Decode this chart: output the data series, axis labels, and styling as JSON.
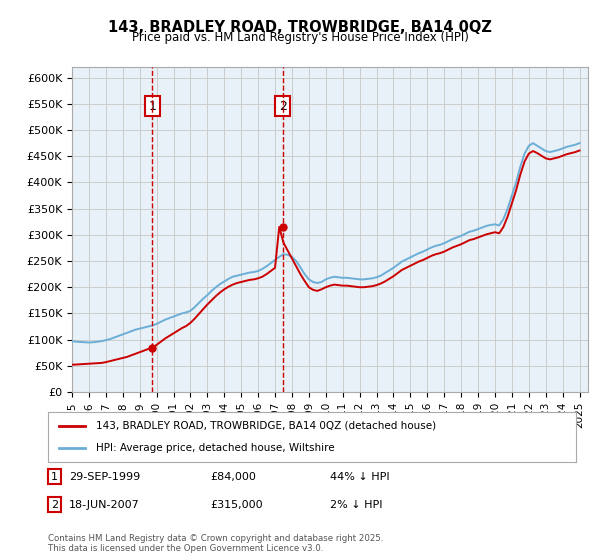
{
  "title": "143, BRADLEY ROAD, TROWBRIDGE, BA14 0QZ",
  "subtitle": "Price paid vs. HM Land Registry's House Price Index (HPI)",
  "legend_line1": "143, BRADLEY ROAD, TROWBRIDGE, BA14 0QZ (detached house)",
  "legend_line2": "HPI: Average price, detached house, Wiltshire",
  "footer": "Contains HM Land Registry data © Crown copyright and database right 2025.\nThis data is licensed under the Open Government Licence v3.0.",
  "annotation1_label": "1",
  "annotation1_date": "29-SEP-1999",
  "annotation1_price": "£84,000",
  "annotation1_hpi": "44% ↓ HPI",
  "annotation2_label": "2",
  "annotation2_date": "18-JUN-2007",
  "annotation2_price": "£315,000",
  "annotation2_hpi": "2% ↓ HPI",
  "sale1_x": 1999.75,
  "sale1_y": 84000,
  "sale2_x": 2007.46,
  "sale2_y": 315000,
  "ylim": [
    0,
    620000
  ],
  "xlim_start": 1995.0,
  "xlim_end": 2025.5,
  "yticks": [
    0,
    50000,
    100000,
    150000,
    200000,
    250000,
    300000,
    350000,
    400000,
    450000,
    500000,
    550000,
    600000
  ],
  "ytick_labels": [
    "£0",
    "£50K",
    "£100K",
    "£150K",
    "£200K",
    "£250K",
    "£300K",
    "£350K",
    "£400K",
    "£450K",
    "£500K",
    "£550K",
    "£600K"
  ],
  "xticks": [
    1995,
    1996,
    1997,
    1998,
    1999,
    2000,
    2001,
    2002,
    2003,
    2004,
    2005,
    2006,
    2007,
    2008,
    2009,
    2010,
    2011,
    2012,
    2013,
    2014,
    2015,
    2016,
    2017,
    2018,
    2019,
    2020,
    2021,
    2022,
    2023,
    2024,
    2025
  ],
  "hpi_color": "#6baed6",
  "price_color": "#cc0000",
  "vline_color": "#cc0000",
  "background_color": "#e8f0f8",
  "plot_bg": "#ffffff",
  "grid_color": "#cccccc",
  "annotation_box_color": "#cc0000",
  "hpi_data_x": [
    1995.0,
    1995.25,
    1995.5,
    1995.75,
    1996.0,
    1996.25,
    1996.5,
    1996.75,
    1997.0,
    1997.25,
    1997.5,
    1997.75,
    1998.0,
    1998.25,
    1998.5,
    1998.75,
    1999.0,
    1999.25,
    1999.5,
    1999.75,
    2000.0,
    2000.25,
    2000.5,
    2000.75,
    2001.0,
    2001.25,
    2001.5,
    2001.75,
    2002.0,
    2002.25,
    2002.5,
    2002.75,
    2003.0,
    2003.25,
    2003.5,
    2003.75,
    2004.0,
    2004.25,
    2004.5,
    2004.75,
    2005.0,
    2005.25,
    2005.5,
    2005.75,
    2006.0,
    2006.25,
    2006.5,
    2006.75,
    2007.0,
    2007.25,
    2007.5,
    2007.75,
    2008.0,
    2008.25,
    2008.5,
    2008.75,
    2009.0,
    2009.25,
    2009.5,
    2009.75,
    2010.0,
    2010.25,
    2010.5,
    2010.75,
    2011.0,
    2011.25,
    2011.5,
    2011.75,
    2012.0,
    2012.25,
    2012.5,
    2012.75,
    2013.0,
    2013.25,
    2013.5,
    2013.75,
    2014.0,
    2014.25,
    2014.5,
    2014.75,
    2015.0,
    2015.25,
    2015.5,
    2015.75,
    2016.0,
    2016.25,
    2016.5,
    2016.75,
    2017.0,
    2017.25,
    2017.5,
    2017.75,
    2018.0,
    2018.25,
    2018.5,
    2018.75,
    2019.0,
    2019.25,
    2019.5,
    2019.75,
    2020.0,
    2020.25,
    2020.5,
    2020.75,
    2021.0,
    2021.25,
    2021.5,
    2021.75,
    2022.0,
    2022.25,
    2022.5,
    2022.75,
    2023.0,
    2023.25,
    2023.5,
    2023.75,
    2024.0,
    2024.25,
    2024.5,
    2024.75,
    2025.0
  ],
  "hpi_data_y": [
    97000,
    96000,
    95500,
    95000,
    94500,
    95000,
    96000,
    97000,
    99000,
    101000,
    104000,
    107000,
    110000,
    113000,
    116000,
    119000,
    121000,
    123000,
    125000,
    127000,
    130000,
    134000,
    138000,
    141000,
    144000,
    147000,
    150000,
    152000,
    155000,
    162000,
    170000,
    178000,
    185000,
    193000,
    200000,
    206000,
    211000,
    216000,
    220000,
    222000,
    224000,
    226000,
    228000,
    229000,
    231000,
    235000,
    240000,
    246000,
    252000,
    258000,
    263000,
    262000,
    258000,
    250000,
    238000,
    225000,
    215000,
    210000,
    208000,
    210000,
    215000,
    218000,
    220000,
    219000,
    218000,
    218000,
    217000,
    216000,
    215000,
    215000,
    216000,
    217000,
    219000,
    222000,
    227000,
    232000,
    237000,
    243000,
    249000,
    253000,
    257000,
    261000,
    265000,
    268000,
    272000,
    276000,
    279000,
    281000,
    284000,
    288000,
    292000,
    295000,
    298000,
    302000,
    306000,
    308000,
    311000,
    314000,
    317000,
    319000,
    320000,
    318000,
    330000,
    350000,
    375000,
    400000,
    430000,
    455000,
    470000,
    475000,
    470000,
    465000,
    460000,
    458000,
    460000,
    462000,
    465000,
    468000,
    470000,
    472000,
    475000
  ],
  "price_data_x": [
    1995.0,
    1995.25,
    1995.5,
    1995.75,
    1996.0,
    1996.25,
    1996.5,
    1996.75,
    1997.0,
    1997.25,
    1997.5,
    1997.75,
    1998.0,
    1998.25,
    1998.5,
    1998.75,
    1999.0,
    1999.25,
    1999.5,
    1999.75,
    2000.0,
    2000.25,
    2000.5,
    2000.75,
    2001.0,
    2001.25,
    2001.5,
    2001.75,
    2002.0,
    2002.25,
    2002.5,
    2002.75,
    2003.0,
    2003.25,
    2003.5,
    2003.75,
    2004.0,
    2004.25,
    2004.5,
    2004.75,
    2005.0,
    2005.25,
    2005.5,
    2005.75,
    2006.0,
    2006.25,
    2006.5,
    2006.75,
    2007.0,
    2007.25,
    2007.5,
    2007.75,
    2008.0,
    2008.25,
    2008.5,
    2008.75,
    2009.0,
    2009.25,
    2009.5,
    2009.75,
    2010.0,
    2010.25,
    2010.5,
    2010.75,
    2011.0,
    2011.25,
    2011.5,
    2011.75,
    2012.0,
    2012.25,
    2012.5,
    2012.75,
    2013.0,
    2013.25,
    2013.5,
    2013.75,
    2014.0,
    2014.25,
    2014.5,
    2014.75,
    2015.0,
    2015.25,
    2015.5,
    2015.75,
    2016.0,
    2016.25,
    2016.5,
    2016.75,
    2017.0,
    2017.25,
    2017.5,
    2017.75,
    2018.0,
    2018.25,
    2018.5,
    2018.75,
    2019.0,
    2019.25,
    2019.5,
    2019.75,
    2020.0,
    2020.25,
    2020.5,
    2020.75,
    2021.0,
    2021.25,
    2021.5,
    2021.75,
    2022.0,
    2022.25,
    2022.5,
    2022.75,
    2023.0,
    2023.25,
    2023.5,
    2023.75,
    2024.0,
    2024.25,
    2024.5,
    2024.75,
    2025.0
  ],
  "price_data_y": [
    52000,
    52500,
    53000,
    53500,
    54000,
    54500,
    55000,
    55500,
    57000,
    59000,
    61000,
    63000,
    65000,
    67000,
    70000,
    73000,
    76000,
    79000,
    82000,
    84000,
    90000,
    96000,
    102000,
    107000,
    112000,
    117000,
    122000,
    126000,
    132000,
    140000,
    149000,
    158000,
    167000,
    175000,
    183000,
    190000,
    196000,
    201000,
    205000,
    208000,
    210000,
    212000,
    214000,
    215000,
    217000,
    220000,
    225000,
    231000,
    237000,
    315000,
    285000,
    270000,
    255000,
    240000,
    225000,
    212000,
    200000,
    195000,
    193000,
    196000,
    200000,
    203000,
    205000,
    204000,
    203000,
    203000,
    202000,
    201000,
    200000,
    200000,
    201000,
    202000,
    204000,
    207000,
    211000,
    216000,
    221000,
    227000,
    233000,
    237000,
    241000,
    245000,
    249000,
    252000,
    256000,
    260000,
    263000,
    265000,
    268000,
    272000,
    276000,
    279000,
    282000,
    286000,
    290000,
    292000,
    295000,
    298000,
    301000,
    303000,
    305000,
    303000,
    315000,
    335000,
    360000,
    385000,
    415000,
    440000,
    455000,
    460000,
    456000,
    451000,
    446000,
    444000,
    446000,
    448000,
    451000,
    454000,
    456000,
    458000,
    461000
  ],
  "vline1_x": 1999.75,
  "vline2_x": 2007.46
}
